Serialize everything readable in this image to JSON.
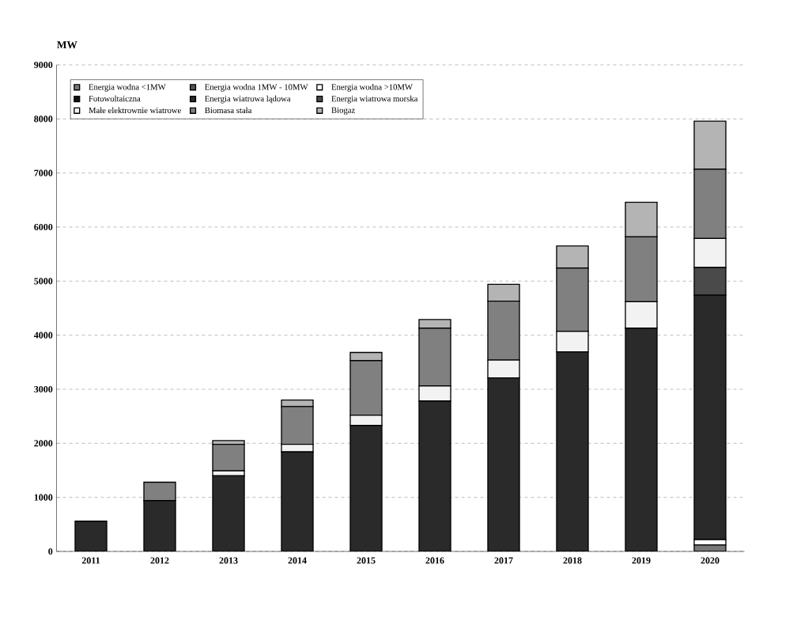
{
  "chart_data": {
    "type": "bar",
    "stacked": true,
    "ylabel": "MW",
    "categories": [
      "2011",
      "2012",
      "2013",
      "2014",
      "2015",
      "2016",
      "2017",
      "2018",
      "2019",
      "2020"
    ],
    "ylim": [
      0,
      9000
    ],
    "yticks": [
      0,
      1000,
      2000,
      3000,
      4000,
      5000,
      6000,
      7000,
      8000,
      9000
    ],
    "grid": "y",
    "legend": "top",
    "series": [
      {
        "name": "Energia wodna <1MW",
        "color": "#777777",
        "values": [
          0,
          0,
          0,
          0,
          0,
          0,
          null,
          null,
          null,
          120
        ]
      },
      {
        "name": "Energia wodna 1MW - 10MW",
        "color": "#555555",
        "values": [
          0,
          0,
          0,
          0,
          0,
          0,
          0,
          0,
          0,
          0
        ]
      },
      {
        "name": "Energia wodna >10MW",
        "color": "#ffffff",
        "values": [
          0,
          0,
          0,
          0,
          0,
          0,
          0,
          0,
          0,
          100
        ]
      },
      {
        "name": "Fotowoltaiczna",
        "color": "#111111",
        "values": [
          0,
          0,
          0,
          0,
          0,
          0,
          0,
          0,
          0,
          0
        ]
      },
      {
        "name": "Energia wiatrowa lądowa",
        "color": "#2a2a2a",
        "values": [
          560,
          940,
          1400,
          1840,
          2330,
          2780,
          3210,
          3690,
          4130,
          4520
        ]
      },
      {
        "name": "Energia wiatrowa morska",
        "color": "#4a4a4a",
        "values": [
          0,
          0,
          0,
          0,
          0,
          0,
          0,
          0,
          0,
          510
        ]
      },
      {
        "name": "Małe elektrownie wiatrowe",
        "color": "#f2f2f2",
        "values": [
          0,
          0,
          90,
          140,
          190,
          280,
          330,
          380,
          490,
          540
        ]
      },
      {
        "name": "Biomasa stała",
        "color": "#808080",
        "values": [
          0,
          340,
          490,
          700,
          1010,
          1070,
          1090,
          1170,
          1200,
          1280
        ]
      },
      {
        "name": "Biogaz",
        "color": "#b4b4b4",
        "values": [
          0,
          0,
          70,
          120,
          150,
          160,
          310,
          410,
          640,
          890
        ]
      }
    ]
  }
}
